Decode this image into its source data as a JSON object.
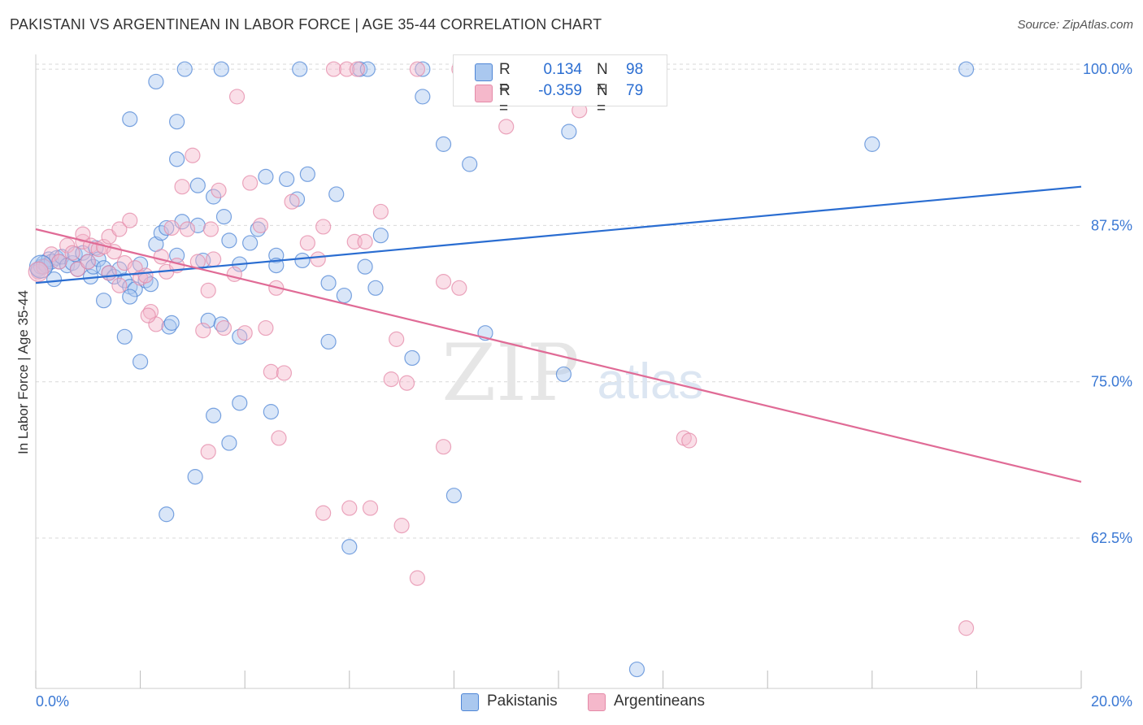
{
  "title": "PAKISTANI VS ARGENTINEAN IN LABOR FORCE | AGE 35-44 CORRELATION CHART",
  "source": "Source: ZipAtlas.com",
  "watermark": {
    "zip": "ZIP",
    "atlas": "atlas"
  },
  "colors": {
    "pakistanis_fill": "#aac8ef",
    "pakistanis_stroke": "#4f86d6",
    "pakistanis_line": "#2a6dd1",
    "argentineans_fill": "#f5b8cb",
    "argentineans_stroke": "#e48aa8",
    "argentineans_line": "#e06b96",
    "tick_label": "#3a78d4",
    "grid": "#d9d9d9"
  },
  "legend": {
    "rows": [
      {
        "r_label": "R =",
        "r_value": "0.134",
        "n_label": "N =",
        "n_value": "98"
      },
      {
        "r_label": "R =",
        "r_value": "-0.359",
        "n_label": "N =",
        "n_value": "79"
      }
    ],
    "bottom": [
      "Pakistanis",
      "Argentineans"
    ]
  },
  "chart_data": {
    "type": "scatter",
    "title": "PAKISTANI VS ARGENTINEAN IN LABOR FORCE | AGE 35-44 CORRELATION CHART",
    "xlabel": "",
    "ylabel": "In Labor Force | Age 35-44",
    "xlim": [
      0,
      20
    ],
    "ylim": [
      50.8,
      101.5
    ],
    "x_tick_labels": [
      {
        "value": 0,
        "label": "0.0%"
      },
      {
        "value": 20,
        "label": "20.0%"
      }
    ],
    "y_ticks": [
      {
        "value": 100,
        "label": "100.0%"
      },
      {
        "value": 87.5,
        "label": "87.5%"
      },
      {
        "value": 75,
        "label": "75.0%"
      },
      {
        "value": 62.5,
        "label": "62.5%"
      }
    ],
    "x_minor_ticks": [
      0,
      2,
      4,
      6,
      8,
      10,
      12,
      14,
      16,
      18,
      20
    ],
    "grid": true,
    "legend_position": "top-center",
    "series": [
      {
        "name": "Pakistanis",
        "r": 0.134,
        "n": 98,
        "trend": {
          "x": [
            0,
            20
          ],
          "y": [
            82.9,
            90.6
          ]
        },
        "points": [
          [
            0.05,
            84.0
          ],
          [
            0.1,
            84.2
          ],
          [
            0.15,
            84.5
          ],
          [
            0.2,
            84.3
          ],
          [
            0.25,
            84.8
          ],
          [
            0.3,
            84.6
          ],
          [
            0.35,
            83.2
          ],
          [
            0.4,
            84.9
          ],
          [
            0.45,
            84.6
          ],
          [
            0.5,
            85.0
          ],
          [
            0.6,
            84.3
          ],
          [
            0.7,
            84.5
          ],
          [
            0.75,
            85.2
          ],
          [
            0.8,
            84.0
          ],
          [
            0.9,
            85.3
          ],
          [
            1.0,
            84.6
          ],
          [
            1.05,
            83.4
          ],
          [
            1.1,
            84.2
          ],
          [
            1.15,
            85.7
          ],
          [
            1.2,
            84.8
          ],
          [
            1.3,
            84.1
          ],
          [
            1.4,
            83.7
          ],
          [
            1.5,
            83.4
          ],
          [
            1.6,
            84.0
          ],
          [
            1.7,
            83.1
          ],
          [
            1.8,
            82.6
          ],
          [
            1.9,
            82.4
          ],
          [
            2.0,
            84.4
          ],
          [
            2.1,
            83.1
          ],
          [
            2.2,
            82.8
          ],
          [
            2.3,
            86.0
          ],
          [
            2.4,
            86.9
          ],
          [
            2.5,
            87.3
          ],
          [
            2.55,
            79.4
          ],
          [
            2.7,
            85.1
          ],
          [
            2.8,
            87.8
          ],
          [
            3.1,
            87.5
          ],
          [
            3.2,
            84.7
          ],
          [
            3.4,
            89.8
          ],
          [
            3.6,
            88.2
          ],
          [
            3.7,
            86.3
          ],
          [
            3.9,
            84.4
          ],
          [
            4.1,
            86.1
          ],
          [
            4.25,
            87.2
          ],
          [
            4.4,
            91.4
          ],
          [
            4.6,
            85.1
          ],
          [
            4.8,
            91.2
          ],
          [
            5.0,
            89.6
          ],
          [
            5.2,
            91.6
          ],
          [
            5.6,
            82.9
          ],
          [
            5.9,
            81.9
          ],
          [
            6.3,
            84.2
          ],
          [
            6.5,
            82.5
          ],
          [
            1.8,
            96.0
          ],
          [
            2.3,
            99.0
          ],
          [
            2.85,
            100.0
          ],
          [
            2.7,
            95.8
          ],
          [
            2.7,
            92.8
          ],
          [
            3.1,
            90.7
          ],
          [
            3.55,
            100.0
          ],
          [
            5.05,
            100.0
          ],
          [
            6.2,
            100.0
          ],
          [
            6.35,
            100.0
          ],
          [
            7.4,
            100.0
          ],
          [
            8.15,
            100.0
          ],
          [
            11.2,
            100.0
          ],
          [
            17.8,
            100.0
          ],
          [
            7.4,
            97.8
          ],
          [
            9.7,
            97.8
          ],
          [
            10.2,
            95.0
          ],
          [
            7.8,
            94.0
          ],
          [
            8.3,
            92.4
          ],
          [
            16.0,
            94.0
          ],
          [
            5.75,
            90.0
          ],
          [
            6.6,
            86.7
          ],
          [
            5.1,
            84.7
          ],
          [
            4.6,
            84.3
          ],
          [
            1.3,
            81.5
          ],
          [
            1.8,
            81.8
          ],
          [
            2.6,
            79.7
          ],
          [
            3.3,
            79.9
          ],
          [
            3.55,
            79.6
          ],
          [
            3.9,
            78.6
          ],
          [
            5.6,
            78.2
          ],
          [
            7.2,
            76.9
          ],
          [
            8.6,
            78.9
          ],
          [
            2.0,
            76.6
          ],
          [
            1.7,
            78.6
          ],
          [
            3.4,
            72.3
          ],
          [
            3.9,
            73.3
          ],
          [
            4.5,
            72.6
          ],
          [
            3.7,
            70.1
          ],
          [
            3.05,
            67.4
          ],
          [
            2.5,
            64.4
          ],
          [
            6.0,
            61.8
          ],
          [
            8.0,
            65.9
          ],
          [
            10.1,
            75.6
          ],
          [
            11.5,
            52.0
          ]
        ]
      },
      {
        "name": "Argentineans",
        "r": -0.359,
        "n": 79,
        "trend": {
          "x": [
            0,
            20
          ],
          "y": [
            87.2,
            67.0
          ]
        },
        "points": [
          [
            0.05,
            83.8
          ],
          [
            0.15,
            84.2
          ],
          [
            0.3,
            85.2
          ],
          [
            0.45,
            84.6
          ],
          [
            0.6,
            85.9
          ],
          [
            0.7,
            85.3
          ],
          [
            0.8,
            84.0
          ],
          [
            0.9,
            86.2
          ],
          [
            1.0,
            84.6
          ],
          [
            1.05,
            85.9
          ],
          [
            1.2,
            85.6
          ],
          [
            1.3,
            85.8
          ],
          [
            1.4,
            86.6
          ],
          [
            1.5,
            85.4
          ],
          [
            1.6,
            87.2
          ],
          [
            1.7,
            84.5
          ],
          [
            1.8,
            87.9
          ],
          [
            1.9,
            84.1
          ],
          [
            2.0,
            83.3
          ],
          [
            2.1,
            83.5
          ],
          [
            2.2,
            80.6
          ],
          [
            2.3,
            79.6
          ],
          [
            2.4,
            85.0
          ],
          [
            2.5,
            83.8
          ],
          [
            2.6,
            87.3
          ],
          [
            2.7,
            84.3
          ],
          [
            2.8,
            90.6
          ],
          [
            2.9,
            87.2
          ],
          [
            3.0,
            93.1
          ],
          [
            3.1,
            84.6
          ],
          [
            3.2,
            79.1
          ],
          [
            3.3,
            82.3
          ],
          [
            3.4,
            84.8
          ],
          [
            3.5,
            90.3
          ],
          [
            3.6,
            79.3
          ],
          [
            3.8,
            83.6
          ],
          [
            4.0,
            78.9
          ],
          [
            4.1,
            90.9
          ],
          [
            4.3,
            87.5
          ],
          [
            4.4,
            79.3
          ],
          [
            4.5,
            75.8
          ],
          [
            4.6,
            82.5
          ],
          [
            4.75,
            75.7
          ],
          [
            4.9,
            89.4
          ],
          [
            5.2,
            86.1
          ],
          [
            5.4,
            84.8
          ],
          [
            5.5,
            87.4
          ],
          [
            5.7,
            100.0
          ],
          [
            5.95,
            100.0
          ],
          [
            3.85,
            97.8
          ],
          [
            6.1,
            86.2
          ],
          [
            6.3,
            86.2
          ],
          [
            6.6,
            88.6
          ],
          [
            6.8,
            75.2
          ],
          [
            6.9,
            78.4
          ],
          [
            7.1,
            74.9
          ],
          [
            7.8,
            83.0
          ],
          [
            7.8,
            69.8
          ],
          [
            8.1,
            82.5
          ],
          [
            5.5,
            64.5
          ],
          [
            6.0,
            64.9
          ],
          [
            6.4,
            64.9
          ],
          [
            7.0,
            63.5
          ],
          [
            7.3,
            59.3
          ],
          [
            4.65,
            70.5
          ],
          [
            3.3,
            69.4
          ],
          [
            12.4,
            70.5
          ],
          [
            12.5,
            70.3
          ],
          [
            17.8,
            55.3
          ],
          [
            8.1,
            100.0
          ],
          [
            10.4,
            96.7
          ],
          [
            9.0,
            95.4
          ],
          [
            6.15,
            100.0
          ],
          [
            7.3,
            100.0
          ],
          [
            1.6,
            82.7
          ],
          [
            2.15,
            80.3
          ],
          [
            3.35,
            87.2
          ],
          [
            0.9,
            86.8
          ],
          [
            1.4,
            83.7
          ]
        ]
      }
    ]
  }
}
